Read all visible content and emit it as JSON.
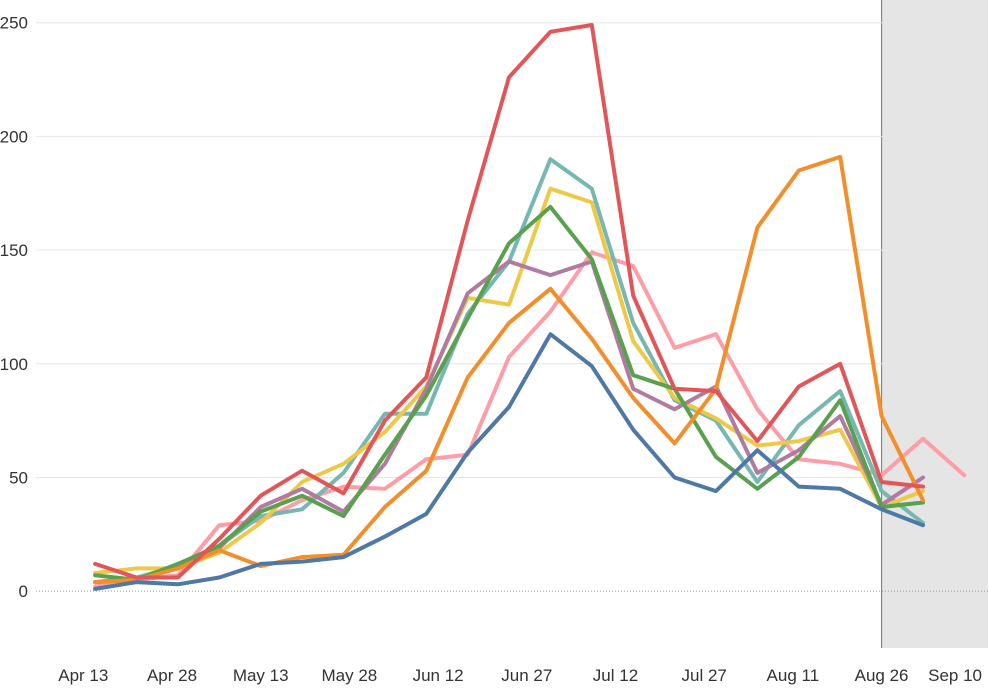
{
  "chart_data": {
    "type": "line",
    "x": [
      "2020-04-15",
      "2020-04-22",
      "2020-04-29",
      "2020-05-06",
      "2020-05-13",
      "2020-05-20",
      "2020-05-27",
      "2020-06-03",
      "2020-06-10",
      "2020-06-17",
      "2020-06-24",
      "2020-07-01",
      "2020-07-08",
      "2020-07-15",
      "2020-07-22",
      "2020-07-29",
      "2020-08-05",
      "2020-08-12",
      "2020-08-19",
      "2020-08-26",
      "2020-09-02",
      "2020-09-09"
    ],
    "x_ticks": [
      {
        "date": "2020-04-13",
        "label": "Apr 13"
      },
      {
        "date": "2020-04-28",
        "label": "Apr 28"
      },
      {
        "date": "2020-05-13",
        "label": "May 13"
      },
      {
        "date": "2020-05-28",
        "label": "May 28"
      },
      {
        "date": "2020-06-12",
        "label": "Jun 12"
      },
      {
        "date": "2020-06-27",
        "label": "Jun 27"
      },
      {
        "date": "2020-07-12",
        "label": "Jul 12"
      },
      {
        "date": "2020-07-27",
        "label": "Jul 27"
      },
      {
        "date": "2020-08-11",
        "label": "Aug 11"
      },
      {
        "date": "2020-08-26",
        "label": "Aug 26"
      },
      {
        "date": "2020-09-10",
        "label": "Sep 10"
      }
    ],
    "y_ticks": [
      0,
      50,
      100,
      150,
      200,
      250
    ],
    "ylim": [
      -25,
      260
    ],
    "xlim": [
      "2020-04-05",
      "2020-09-13"
    ],
    "shaded_from": "2020-08-26",
    "grid": true,
    "title": "",
    "xlabel": "",
    "ylabel": "",
    "series": [
      {
        "color": "#ff9da7",
        "values": [
          2,
          5,
          7,
          29,
          31,
          40,
          46,
          45,
          58,
          60,
          103,
          123,
          149,
          143,
          107,
          113,
          80,
          58,
          56,
          51,
          67,
          51
        ]
      },
      {
        "color": "#76b7b2",
        "values": [
          4,
          6,
          11,
          20,
          33,
          36,
          52,
          78,
          78,
          122,
          145,
          190,
          177,
          118,
          84,
          75,
          48,
          73,
          88,
          44,
          30,
          null
        ]
      },
      {
        "color": "#edc948",
        "values": [
          8,
          10,
          10,
          17,
          30,
          48,
          56,
          70,
          90,
          129,
          126,
          177,
          171,
          110,
          85,
          76,
          64,
          66,
          71,
          37,
          44,
          null
        ]
      },
      {
        "color": "#b07aa1",
        "values": [
          4,
          5,
          11,
          19,
          37,
          45,
          35,
          56,
          89,
          131,
          145,
          139,
          145,
          89,
          80,
          90,
          52,
          62,
          77,
          38,
          50,
          null
        ]
      },
      {
        "color": "#59a14f",
        "values": [
          7,
          5,
          12,
          20,
          35,
          42,
          33,
          60,
          86,
          120,
          153,
          169,
          146,
          95,
          89,
          59,
          45,
          59,
          84,
          37,
          39,
          null
        ]
      },
      {
        "color": "#f28e2b",
        "values": [
          4,
          5,
          10,
          18,
          11,
          15,
          16,
          37,
          53,
          94,
          118,
          133,
          111,
          85,
          65,
          89,
          160,
          185,
          191,
          77,
          40,
          null
        ]
      },
      {
        "color": "#e15759",
        "values": [
          12,
          6,
          6,
          23,
          42,
          53,
          43,
          75,
          94,
          163,
          226,
          246,
          249,
          130,
          89,
          88,
          66,
          90,
          100,
          48,
          46,
          null
        ]
      },
      {
        "color": "#4e79a7",
        "values": [
          1,
          4,
          3,
          6,
          12,
          13,
          15,
          24,
          34,
          61,
          81,
          113,
          99,
          71,
          50,
          44,
          62,
          46,
          45,
          36,
          29,
          null
        ]
      }
    ]
  }
}
